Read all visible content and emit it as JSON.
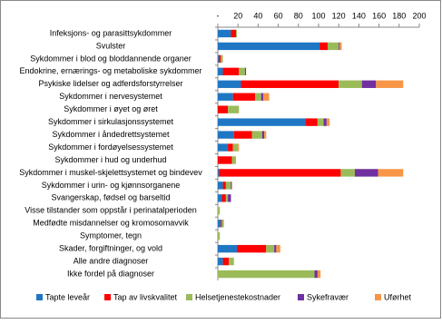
{
  "chart_data": {
    "type": "stacked-bar-horizontal",
    "categories": [
      "Infeksjons- og parasittsykdommer",
      "Svulster",
      "Sykdommer i blod og bloddannende organer",
      "Endokrine, ernærings- og metaboliske sykdommer",
      "Psykiske lidelser og adferdsforstyrrelser",
      "Sykdommer i nervesystemet",
      "Sykdommer i øyet og øret",
      "Sykdommer i sirkulasjonssystemet",
      "Sykdommer i åndedrettsystemet",
      "Sykdommer i fordøyelsessystemet",
      "Sykdommer i hud og underhud",
      "Sykdommer i muskel-skjelettsystemet og bindevev",
      "Sykdommer i urin- og kjønnsorganene",
      "Svangerskap, fødsel og barseltid",
      "Visse tilstander som oppstår i perinatalperioden",
      "Medfødte misdannelser og kromosomavvik",
      "Symptomer, tegn",
      "Skader, forgiftninger, og vold",
      "Alle andre diagnoser",
      "Ikke fordel på diagnoser"
    ],
    "series": [
      {
        "name": "Tapte leveår",
        "color": "#1f77c4",
        "values": [
          13,
          101,
          1,
          5,
          23,
          15,
          0,
          87,
          16,
          10,
          0,
          1,
          5,
          4,
          0,
          3,
          0,
          19,
          5,
          0
        ]
      },
      {
        "name": "Tap av livskvalitet",
        "color": "#ff0000",
        "values": [
          5,
          8,
          2,
          16,
          97,
          22,
          10,
          12,
          18,
          5,
          14,
          121,
          3,
          4,
          0,
          1,
          0,
          29,
          6,
          0
        ]
      },
      {
        "name": "Helsetjenestekostnader",
        "color": "#9bbb59",
        "values": [
          1,
          11,
          2,
          6,
          23,
          6,
          11,
          6,
          10,
          5,
          4,
          14,
          5,
          2,
          2,
          2,
          2,
          8,
          5,
          96
        ]
      },
      {
        "name": "Sykefravær",
        "color": "#7030a0",
        "values": [
          0,
          1,
          0,
          1,
          14,
          2,
          0,
          3,
          2,
          0,
          0,
          23,
          1,
          3,
          0,
          0,
          0,
          2,
          0,
          3
        ]
      },
      {
        "name": "Uførhet",
        "color": "#f79646",
        "values": [
          0,
          2,
          0,
          0,
          27,
          6,
          0,
          3,
          2,
          1,
          0,
          25,
          0,
          0,
          0,
          0,
          0,
          4,
          0,
          3
        ]
      }
    ],
    "xlim": [
      0,
      200
    ],
    "xticks": [
      {
        "value": 0,
        "label": "-"
      },
      20,
      40,
      60,
      80,
      100,
      120,
      140,
      160,
      180,
      200
    ]
  }
}
